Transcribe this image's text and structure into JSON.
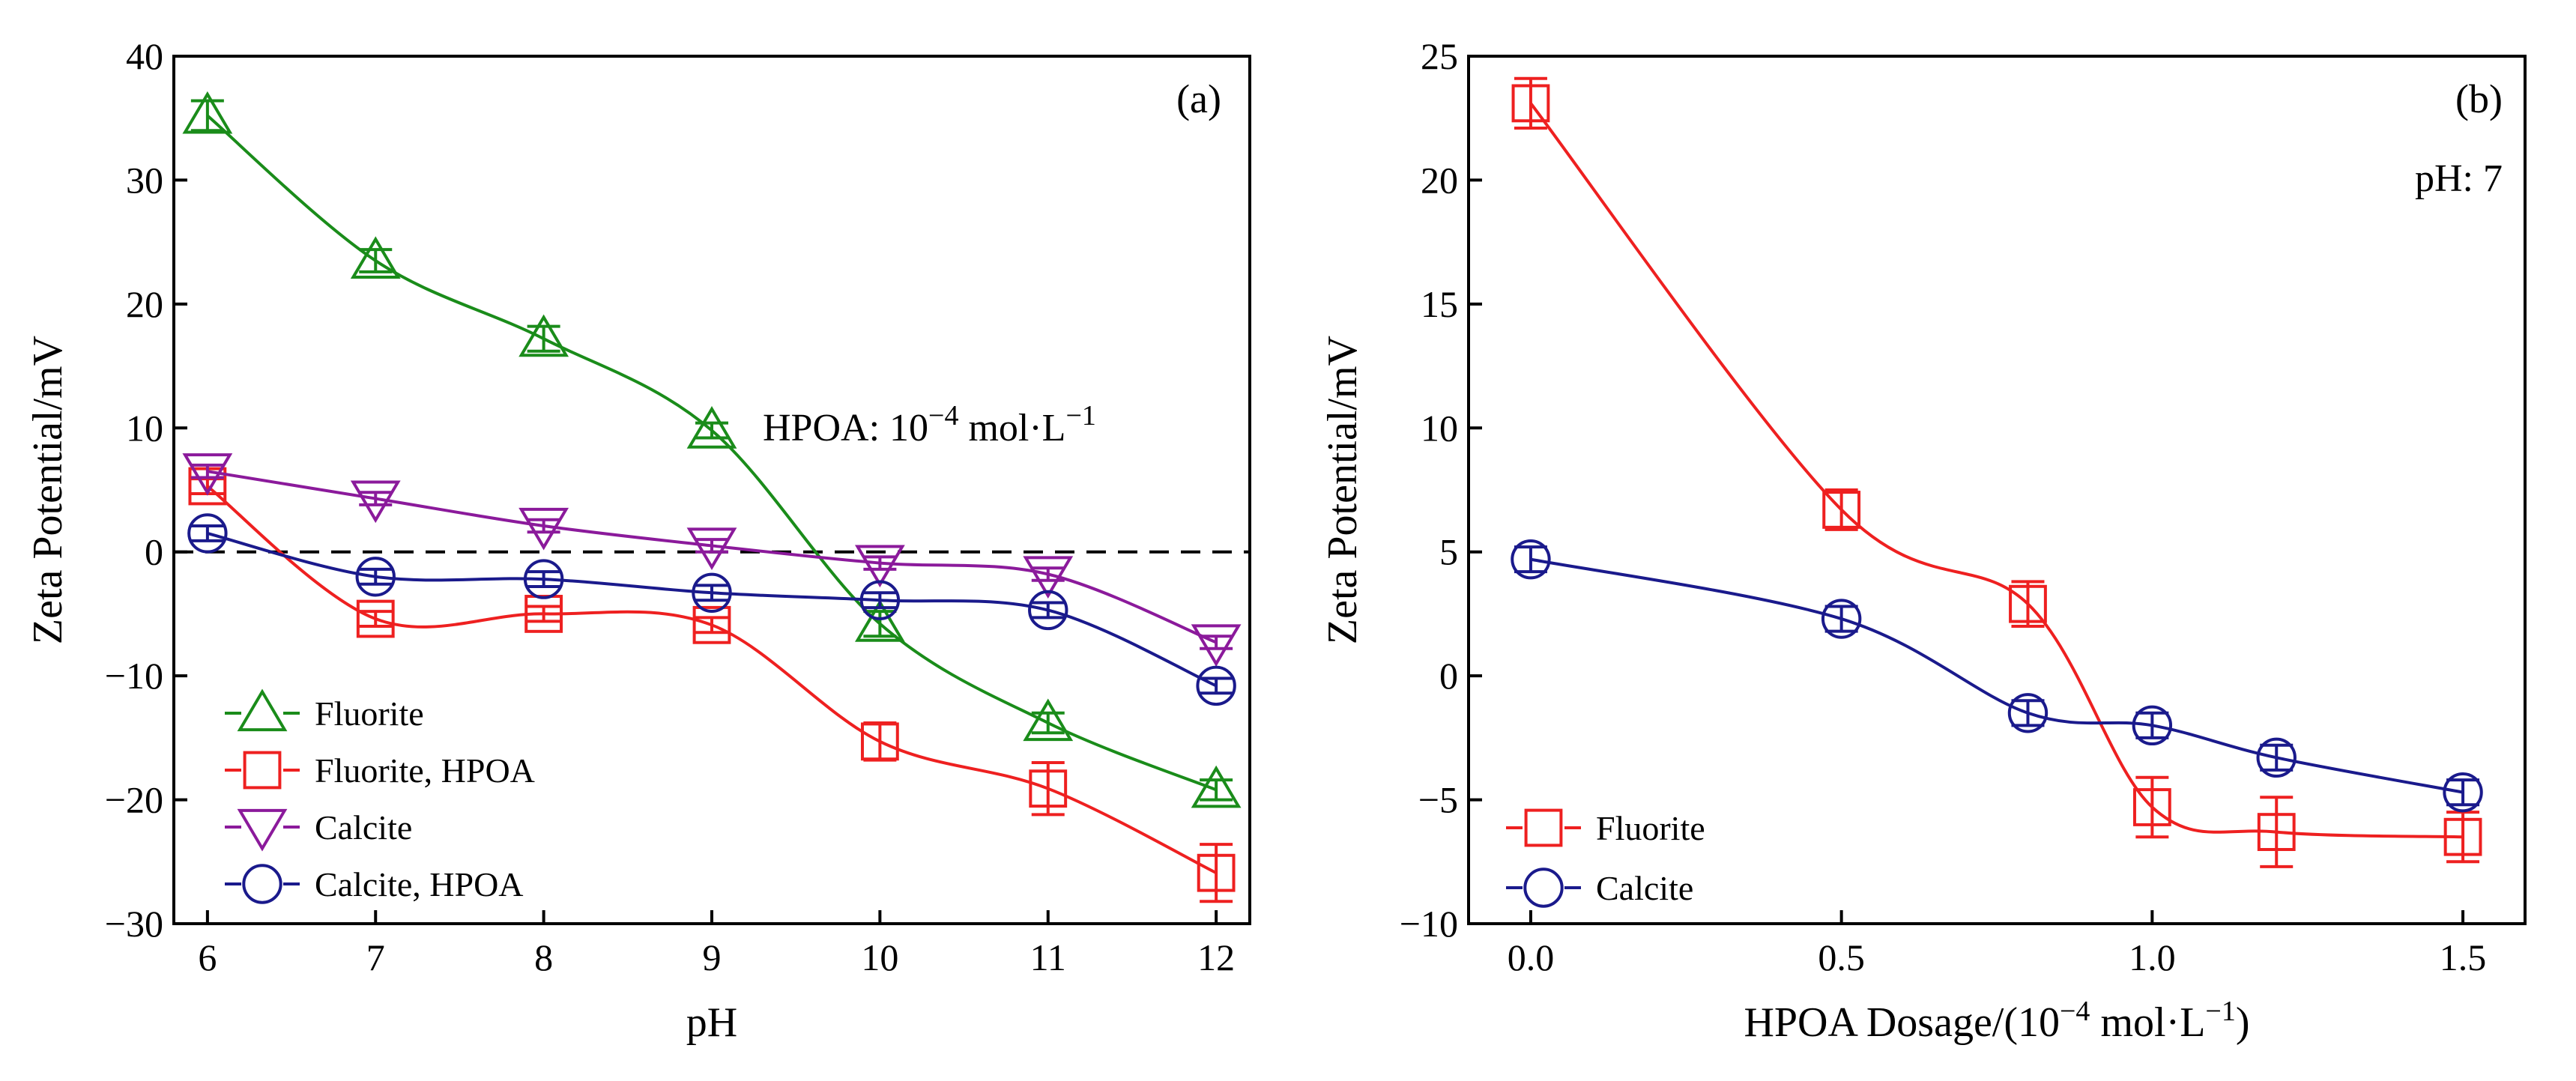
{
  "chart_data": [
    {
      "type": "line",
      "panel_label": "(a)",
      "xlabel": "pH",
      "ylabel": "Zeta Potential/mV",
      "xlim": [
        5.8,
        12.2
      ],
      "ylim": [
        -30,
        40
      ],
      "xticks": [
        6,
        7,
        8,
        9,
        10,
        11,
        12
      ],
      "xtick_labels": [
        "6",
        "7",
        "8",
        "9",
        "10",
        "11",
        "12"
      ],
      "yticks": [
        -30,
        -20,
        -10,
        0,
        10,
        20,
        30,
        40
      ],
      "ytick_labels": [
        "−30",
        "−20",
        "−10",
        "0",
        "10",
        "20",
        "30",
        "40"
      ],
      "reference_line": {
        "y": 0,
        "style": "dashed"
      },
      "annotation": {
        "base": "HPOA: 10",
        "exponent": "−4",
        "unit": " mol·L",
        "unit_exponent": "−1"
      },
      "legend_position": "bottom-left",
      "series": [
        {
          "name": "Fluorite",
          "marker": "triangle-up",
          "color": "#1a8c1a",
          "x": [
            6,
            7,
            8,
            9,
            10,
            11,
            12
          ],
          "y": [
            35.2,
            23.5,
            17.2,
            9.8,
            -5.8,
            -13.8,
            -19.2
          ],
          "err": [
            1.2,
            0.9,
            1.0,
            0.6,
            1.0,
            0.8,
            0.8
          ]
        },
        {
          "name": "Fluorite, HPOA",
          "marker": "square",
          "color": "#ee2020",
          "x": [
            6,
            7,
            8,
            9,
            10,
            11,
            12
          ],
          "y": [
            5.3,
            -5.4,
            -5.0,
            -5.9,
            -15.3,
            -19.1,
            -25.9
          ],
          "err": [
            0.6,
            0.6,
            0.6,
            0.6,
            1.5,
            2.1,
            2.3
          ]
        },
        {
          "name": "Calcite",
          "marker": "triangle-down",
          "color": "#8b1a9b",
          "x": [
            6,
            7,
            8,
            9,
            10,
            11,
            12
          ],
          "y": [
            6.5,
            4.3,
            2.1,
            0.5,
            -0.9,
            -1.8,
            -7.3
          ],
          "err": [
            0.5,
            0.5,
            0.5,
            0.5,
            0.5,
            0.5,
            0.5
          ]
        },
        {
          "name": "Calcite, HPOA",
          "marker": "circle",
          "color": "#1a1a8c",
          "x": [
            6,
            7,
            8,
            9,
            10,
            11,
            12
          ],
          "y": [
            1.5,
            -2.0,
            -2.2,
            -3.3,
            -3.9,
            -4.7,
            -10.8
          ],
          "err": [
            0.6,
            0.6,
            0.6,
            0.6,
            0.6,
            0.6,
            0.6
          ]
        }
      ]
    },
    {
      "type": "line",
      "panel_label": "(b)",
      "xlabel": "HPOA Dosage/(10",
      "xlabel_exponent": "−4",
      "xlabel_unit": " mol·L",
      "xlabel_unit_exponent": "−1",
      "xlabel_suffix": ")",
      "ylabel": "Zeta Potential/mV",
      "xlim": [
        -0.1,
        1.6
      ],
      "ylim": [
        -10,
        25
      ],
      "xticks": [
        0,
        0.5,
        1.0,
        1.5
      ],
      "xtick_labels": [
        "0.0",
        "0.5",
        "1.0",
        "1.5"
      ],
      "yticks": [
        -10,
        -5,
        0,
        5,
        10,
        15,
        20,
        25
      ],
      "ytick_labels": [
        "−10",
        "−5",
        "0",
        "5",
        "10",
        "15",
        "20",
        "25"
      ],
      "note": "pH: 7",
      "legend_position": "bottom-left",
      "series": [
        {
          "name": "Fluorite",
          "marker": "square",
          "color": "#ee2020",
          "x": [
            0,
            0.5,
            0.8,
            1.0,
            1.2,
            1.5
          ],
          "y": [
            23.1,
            6.7,
            2.9,
            -5.3,
            -6.3,
            -6.5
          ],
          "err": [
            1.0,
            0.8,
            0.9,
            1.2,
            1.4,
            1.0
          ]
        },
        {
          "name": "Calcite",
          "marker": "circle",
          "color": "#1a1a8c",
          "x": [
            0,
            0.5,
            0.8,
            1.0,
            1.2,
            1.5
          ],
          "y": [
            4.7,
            2.3,
            -1.5,
            -2.0,
            -3.3,
            -4.7
          ],
          "err": [
            0.5,
            0.5,
            0.5,
            0.5,
            0.5,
            0.5
          ]
        }
      ]
    }
  ]
}
